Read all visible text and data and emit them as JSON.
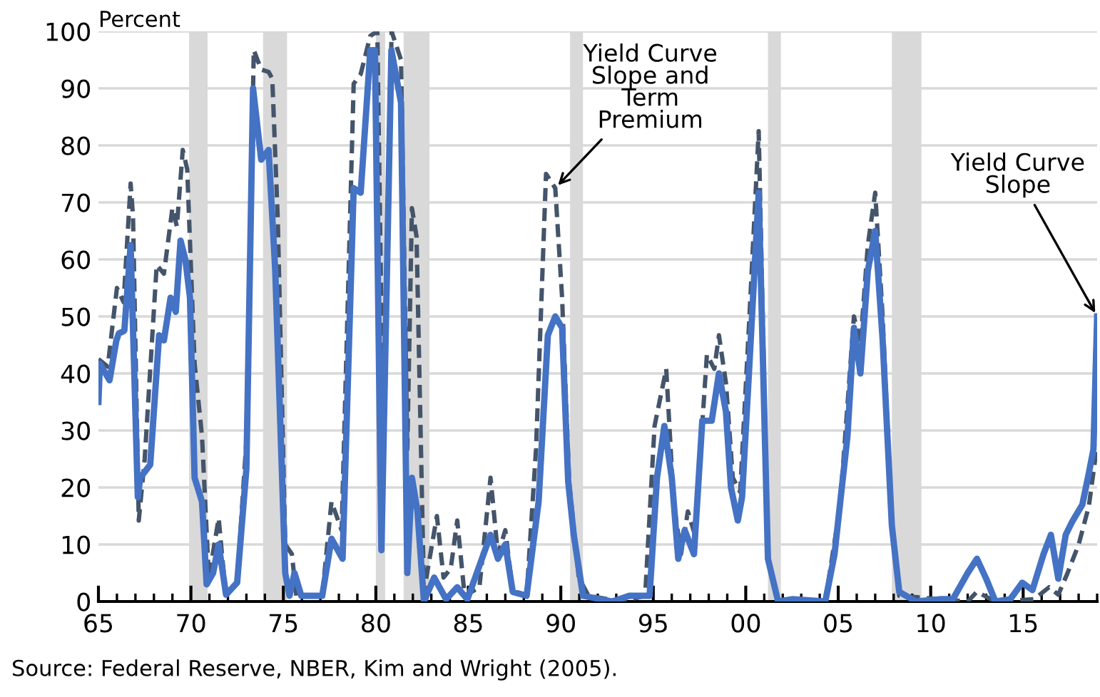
{
  "chart_data": {
    "type": "line",
    "ylabel": "Percent",
    "xlim": [
      1965,
      2019
    ],
    "xticks": [
      {
        "value": 1965,
        "label": "65"
      },
      {
        "value": 1970,
        "label": "70"
      },
      {
        "value": 1975,
        "label": "75"
      },
      {
        "value": 1980,
        "label": "80"
      },
      {
        "value": 1985,
        "label": "85"
      },
      {
        "value": 1990,
        "label": "90"
      },
      {
        "value": 1995,
        "label": "95"
      },
      {
        "value": 2000,
        "label": "00"
      },
      {
        "value": 2005,
        "label": "05"
      },
      {
        "value": 2010,
        "label": "10"
      },
      {
        "value": 2015,
        "label": "15"
      }
    ],
    "ylim": [
      0,
      100
    ],
    "yticks": [
      0,
      10,
      20,
      30,
      40,
      50,
      60,
      70,
      80,
      90,
      100
    ],
    "grid": "y",
    "legend": false,
    "bands": [
      {
        "axis": "x",
        "from": 1969.9,
        "to": 1970.9,
        "color": "#d9d9d9"
      },
      {
        "axis": "x",
        "from": 1973.9,
        "to": 1975.2,
        "color": "#d9d9d9"
      },
      {
        "axis": "x",
        "from": 1980.0,
        "to": 1980.5,
        "color": "#d9d9d9"
      },
      {
        "axis": "x",
        "from": 1981.5,
        "to": 1982.9,
        "color": "#d9d9d9"
      },
      {
        "axis": "x",
        "from": 1990.5,
        "to": 1991.2,
        "color": "#d9d9d9"
      },
      {
        "axis": "x",
        "from": 2001.2,
        "to": 2001.9,
        "color": "#d9d9d9"
      },
      {
        "axis": "x",
        "from": 2007.9,
        "to": 2009.5,
        "color": "#d9d9d9"
      }
    ],
    "series": [
      {
        "color": "#44546a",
        "line_style": "dashed",
        "x": [
          1965,
          1965.5,
          1966,
          1966.36,
          1966.74,
          1966.87,
          1967.18,
          1967.5,
          1968.15,
          1968.54,
          1969,
          1969.24,
          1969.56,
          1969.8,
          1970.2,
          1970.6,
          1970.97,
          1971.5,
          1971.87,
          1972.5,
          1973.0,
          1973.4,
          1973.8,
          1974.2,
          1974.4,
          1974.7,
          1975.1,
          1975.46,
          1975.7,
          1977.1,
          1977.6,
          1978.15,
          1978.8,
          1979.18,
          1979.7,
          1980.08,
          1980.4,
          1980.85,
          1981.36,
          1981.7,
          1981.95,
          1982.2,
          1982.6,
          1983.3,
          1983.66,
          1984.05,
          1984.4,
          1984.8,
          1985.6,
          1986.2,
          1986.6,
          1987,
          1987.4,
          1988.15,
          1988.66,
          1989.2,
          1989.7,
          1990.07,
          1990.45,
          1990.97,
          1991.5,
          1993.3,
          1994.56,
          1995.07,
          1995.7,
          1996.1,
          1996.5,
          1996.87,
          1997.25,
          1997.9,
          1998.3,
          1998.55,
          1998.93,
          1999.3,
          1999.7,
          2000.2,
          2000.7,
          2001.2,
          2001.75,
          2004.3,
          2005.1,
          2005.85,
          2006.2,
          2006.6,
          2007,
          2007.4,
          2007.9,
          2008.3,
          2012,
          2012.5,
          2013.5,
          2015.6,
          2016.4,
          2016.9,
          2017.4,
          2018,
          2018.55,
          2019
        ],
        "values": [
          42.5,
          41.2,
          55,
          52.5,
          73.3,
          67.5,
          14.2,
          25,
          59,
          57.5,
          69,
          65.8,
          79.2,
          75.8,
          41.7,
          29,
          4.2,
          14.6,
          1.7,
          3.3,
          28.3,
          96.7,
          93.3,
          92.9,
          91.7,
          66.7,
          10,
          8.3,
          1,
          1,
          17.5,
          12.5,
          90.8,
          92.5,
          99.2,
          100,
          26.7,
          100,
          95,
          26.7,
          69,
          64,
          1.7,
          15,
          4.2,
          5.8,
          14.2,
          1,
          2.5,
          21.7,
          8.3,
          12.5,
          1.7,
          1,
          26.7,
          75,
          72.5,
          53.3,
          21,
          4.2,
          1,
          0,
          1,
          30.8,
          40.8,
          17.5,
          8.3,
          15.8,
          11.7,
          43.3,
          40.8,
          46.7,
          38.3,
          21.7,
          19.2,
          50,
          82.5,
          7.5,
          0,
          0,
          16.7,
          50,
          45,
          62.5,
          71.7,
          50,
          13.3,
          1,
          0,
          1.7,
          0,
          0.4,
          2.5,
          1.2,
          5,
          10,
          16.7,
          27.5
        ]
      },
      {
        "color": "#4472c4",
        "line_style": "solid",
        "x": [
          1965.0,
          1965.08,
          1965.6,
          1965.97,
          1966.1,
          1966.4,
          1966.74,
          1967.13,
          1967.26,
          1967.8,
          1968.28,
          1968.54,
          1968.9,
          1969.18,
          1969.44,
          1969.7,
          1969.95,
          1970.2,
          1970.6,
          1970.85,
          1971.2,
          1971.5,
          1971.9,
          1972.5,
          1973.0,
          1973.36,
          1973.8,
          1974.2,
          1974.56,
          1975.1,
          1975.33,
          1975.6,
          1975.97,
          1977.1,
          1977.6,
          1978.2,
          1978.8,
          1979.18,
          1979.7,
          1979.95,
          1980.3,
          1980.84,
          1981.36,
          1981.7,
          1981.95,
          1982.25,
          1982.6,
          1983.15,
          1983.8,
          1984.4,
          1984.95,
          1986.2,
          1986.6,
          1987,
          1987.4,
          1988.15,
          1988.8,
          1989.3,
          1989.7,
          1990.07,
          1990.4,
          1990.7,
          1991.2,
          1992.8,
          1993.7,
          1994.8,
          1995.2,
          1995.6,
          1996,
          1996.35,
          1996.7,
          1997.2,
          1997.65,
          1998.16,
          1998.55,
          1998.93,
          1999.2,
          1999.57,
          1999.8,
          2000.2,
          2000.7,
          2001.2,
          2001.75,
          2002.5,
          2004.3,
          2004.8,
          2005.5,
          2005.85,
          2006.2,
          2006.6,
          2007,
          2007.4,
          2007.9,
          2008.3,
          2009.2,
          2010.5,
          2011.2,
          2012,
          2012.5,
          2013,
          2013.5,
          2014.3,
          2014.95,
          2015.5,
          2016.1,
          2016.5,
          2016.9,
          2017.3,
          2017.65,
          2018.2,
          2018.55,
          2018.8,
          2019.0
        ],
        "values": [
          35,
          41.7,
          38.8,
          45.8,
          47,
          47.5,
          62.5,
          18.3,
          21.7,
          24,
          46.7,
          45.8,
          53.3,
          50.8,
          63.3,
          60,
          53.3,
          21.7,
          17.5,
          3,
          5,
          10,
          1.2,
          3.3,
          23.3,
          90,
          77.5,
          79.2,
          58,
          5,
          1,
          5,
          1,
          1,
          11,
          7.5,
          72.5,
          71.7,
          96.7,
          96.7,
          9,
          96.7,
          87.5,
          5,
          21.7,
          15.8,
          0,
          4.2,
          0.4,
          2.5,
          0.4,
          11.7,
          7.5,
          10,
          1.7,
          1,
          17.5,
          46.7,
          50,
          48,
          21,
          11.7,
          1,
          0,
          1,
          1,
          21.7,
          30.8,
          21.7,
          7.5,
          12.5,
          8.3,
          31.7,
          31.7,
          40,
          33.3,
          20,
          14.2,
          18.3,
          41.7,
          71.7,
          7.5,
          0,
          0.4,
          0,
          8.3,
          29,
          48,
          40,
          58,
          65,
          46,
          13.3,
          1.7,
          0,
          0.4,
          0.4,
          5,
          7.5,
          4,
          0,
          0.4,
          3.3,
          2,
          8.3,
          11.7,
          4,
          11.7,
          14,
          17,
          22.5,
          26.7,
          50
        ]
      }
    ],
    "annotations": [
      {
        "text": "Yield Curve\nSlope and\nTerm\nPremium",
        "x": 1989.7,
        "y": 72.5
      },
      {
        "text": "Yield Curve\nSlope",
        "x": 2019,
        "y": 50
      },
      "Source: Federal Reserve, NBER, Kim and Wright (2005)."
    ]
  }
}
